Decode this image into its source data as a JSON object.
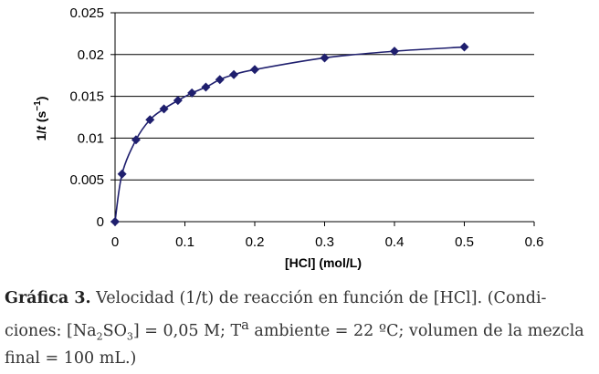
{
  "chart_data": {
    "type": "scatter",
    "x": [
      0,
      0.01,
      0.03,
      0.05,
      0.07,
      0.09,
      0.11,
      0.13,
      0.15,
      0.17,
      0.2,
      0.3,
      0.4,
      0.5
    ],
    "series": [
      {
        "values": [
          0,
          0.0057,
          0.0098,
          0.0122,
          0.0135,
          0.0145,
          0.0154,
          0.0161,
          0.017,
          0.0176,
          0.0182,
          0.0196,
          0.0204,
          0.0209
        ]
      }
    ],
    "xlabel": "[HCl] (mol/L)",
    "ylabel_main": "1/",
    "ylabel_italic": "t",
    "ylabel_unit": " (s",
    "ylabel_sup": "−1",
    "ylabel_close": ")",
    "xlim": [
      0,
      0.6
    ],
    "ylim": [
      0,
      0.025
    ],
    "xticks": [
      "0",
      "0.1",
      "0.2",
      "0.3",
      "0.4",
      "0.5",
      "0.6"
    ],
    "yticks": [
      "0",
      "0.005",
      "0.01",
      "0.015",
      "0.02",
      "0.025"
    ],
    "grid": "horizontal",
    "marker": "diamond",
    "trendline": true,
    "colors": {
      "series": "#1f1f6e",
      "grid": "#000000"
    }
  },
  "caption": {
    "label": "Gráfica 3.",
    "text_1": " Velocidad (1/t) de reacción en función de [HCl]. (Condi-ciones: [Na",
    "sub_1": "2",
    "text_2": "SO",
    "sub_2": "3",
    "text_3": "] = 0,05 M; T",
    "sup_1": "a",
    "text_4": " ambiente = 22 ºC; volumen de la mezcla final = 100 mL.)"
  }
}
